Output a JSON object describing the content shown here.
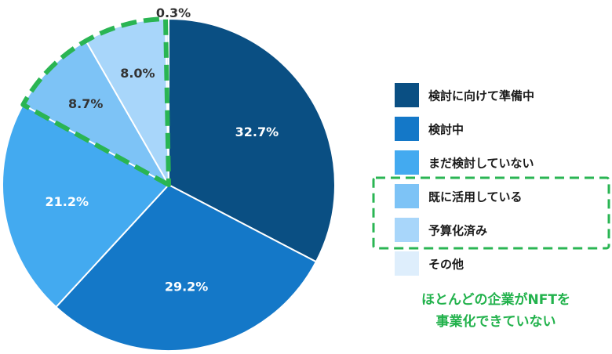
{
  "chart_data": {
    "type": "pie",
    "title": "",
    "categories": [
      "検討に向けて準備中",
      "検討中",
      "まだ検討していない",
      "既に活用している",
      "予算化済み",
      "その他"
    ],
    "values": [
      32.7,
      29.2,
      21.2,
      8.7,
      8.0,
      0.3
    ],
    "labels": [
      "32.7%",
      "29.2%",
      "21.2%",
      "8.7%",
      "8.0%",
      "0.3%"
    ],
    "colors": [
      "#0a4f83",
      "#1478c8",
      "#43aaf0",
      "#7dc3f6",
      "#a8d6fa",
      "#deeefc"
    ],
    "legend_position": "right",
    "highlight": {
      "categories": [
        "既に活用している",
        "予算化済み"
      ],
      "color": "#2ab553",
      "note_lines": [
        "ほとんどの企業がNFTを",
        "事業化できていない"
      ]
    }
  }
}
